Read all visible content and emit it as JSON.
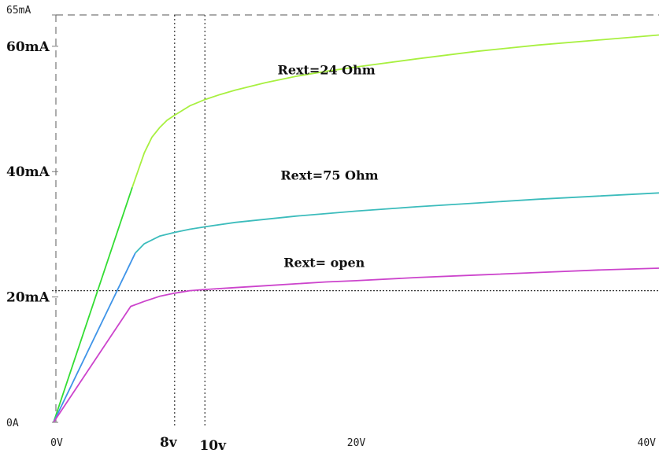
{
  "chart_data": {
    "type": "line",
    "xlim": [
      0,
      40
    ],
    "ylim": [
      0,
      65
    ],
    "grid": false,
    "ticks": {
      "y": [
        {
          "value": 65,
          "label": "65mA",
          "style": "mono"
        },
        {
          "value": 60,
          "label": "60mA",
          "style": "serif"
        },
        {
          "value": 40,
          "label": "40mA",
          "style": "serif"
        },
        {
          "value": 20,
          "label": "20mA",
          "style": "serif"
        },
        {
          "value": 0,
          "label": "0A",
          "style": "mono"
        }
      ],
      "x": [
        {
          "value": 0,
          "label": "0V",
          "style": "mono"
        },
        {
          "value": 8,
          "label": "8v",
          "style": "serif"
        },
        {
          "value": 10,
          "label": "10v",
          "style": "serif"
        },
        {
          "value": 20,
          "label": "20V",
          "style": "mono"
        },
        {
          "value": 40,
          "label": "40V",
          "style": "mono"
        }
      ]
    },
    "reference_lines": {
      "vertical": [
        8,
        10
      ],
      "horizontal": [
        21
      ]
    },
    "series": [
      {
        "name": "Rext=24 Ohm",
        "color": "#a8f040",
        "label_at": [
          14.8,
          55.5
        ],
        "segments": [
          {
            "color": "#33dd33",
            "x": [
              0,
              5.2
            ],
            "y": [
              0,
              37.5
            ]
          },
          {
            "color": "#a8f040",
            "x": [
              5.2,
              6,
              6.5,
              7,
              7.5,
              8,
              9,
              10,
              11,
              12,
              14,
              16,
              18,
              20,
              24,
              28,
              32,
              36,
              40
            ],
            "y": [
              37.5,
              43,
              45.5,
              47,
              48.2,
              49,
              50.5,
              51.5,
              52.3,
              53,
              54.2,
              55.2,
              56,
              56.7,
              58,
              59.2,
              60.2,
              61,
              61.8
            ]
          }
        ]
      },
      {
        "name": "Rext=75 Ohm",
        "color": "#3cbcbc",
        "label_at": [
          15,
          38.7
        ],
        "segments": [
          {
            "color": "#3f94e8",
            "x": [
              0,
              5.4
            ],
            "y": [
              0,
              27
            ]
          },
          {
            "color": "#3cbcbc",
            "x": [
              5.4,
              6,
              7,
              8,
              9,
              10,
              12,
              14,
              16,
              18,
              20,
              24,
              28,
              32,
              36,
              40
            ],
            "y": [
              27,
              28.5,
              29.7,
              30.3,
              30.8,
              31.2,
              31.9,
              32.4,
              32.9,
              33.3,
              33.7,
              34.4,
              35,
              35.6,
              36.1,
              36.6
            ]
          }
        ]
      },
      {
        "name": "Rext= open",
        "color": "#cc44cc",
        "label_at": [
          15.2,
          24.8
        ],
        "segments": [
          {
            "color": "#cc44cc",
            "x": [
              0,
              5.1,
              6,
              7,
              8,
              9,
              10,
              12,
              14,
              16,
              18,
              20,
              24,
              28,
              32,
              36,
              40
            ],
            "y": [
              0,
              18.5,
              19.3,
              20.1,
              20.6,
              21,
              21.2,
              21.5,
              21.8,
              22.1,
              22.4,
              22.6,
              23.1,
              23.5,
              23.9,
              24.3,
              24.6
            ]
          }
        ]
      }
    ]
  }
}
